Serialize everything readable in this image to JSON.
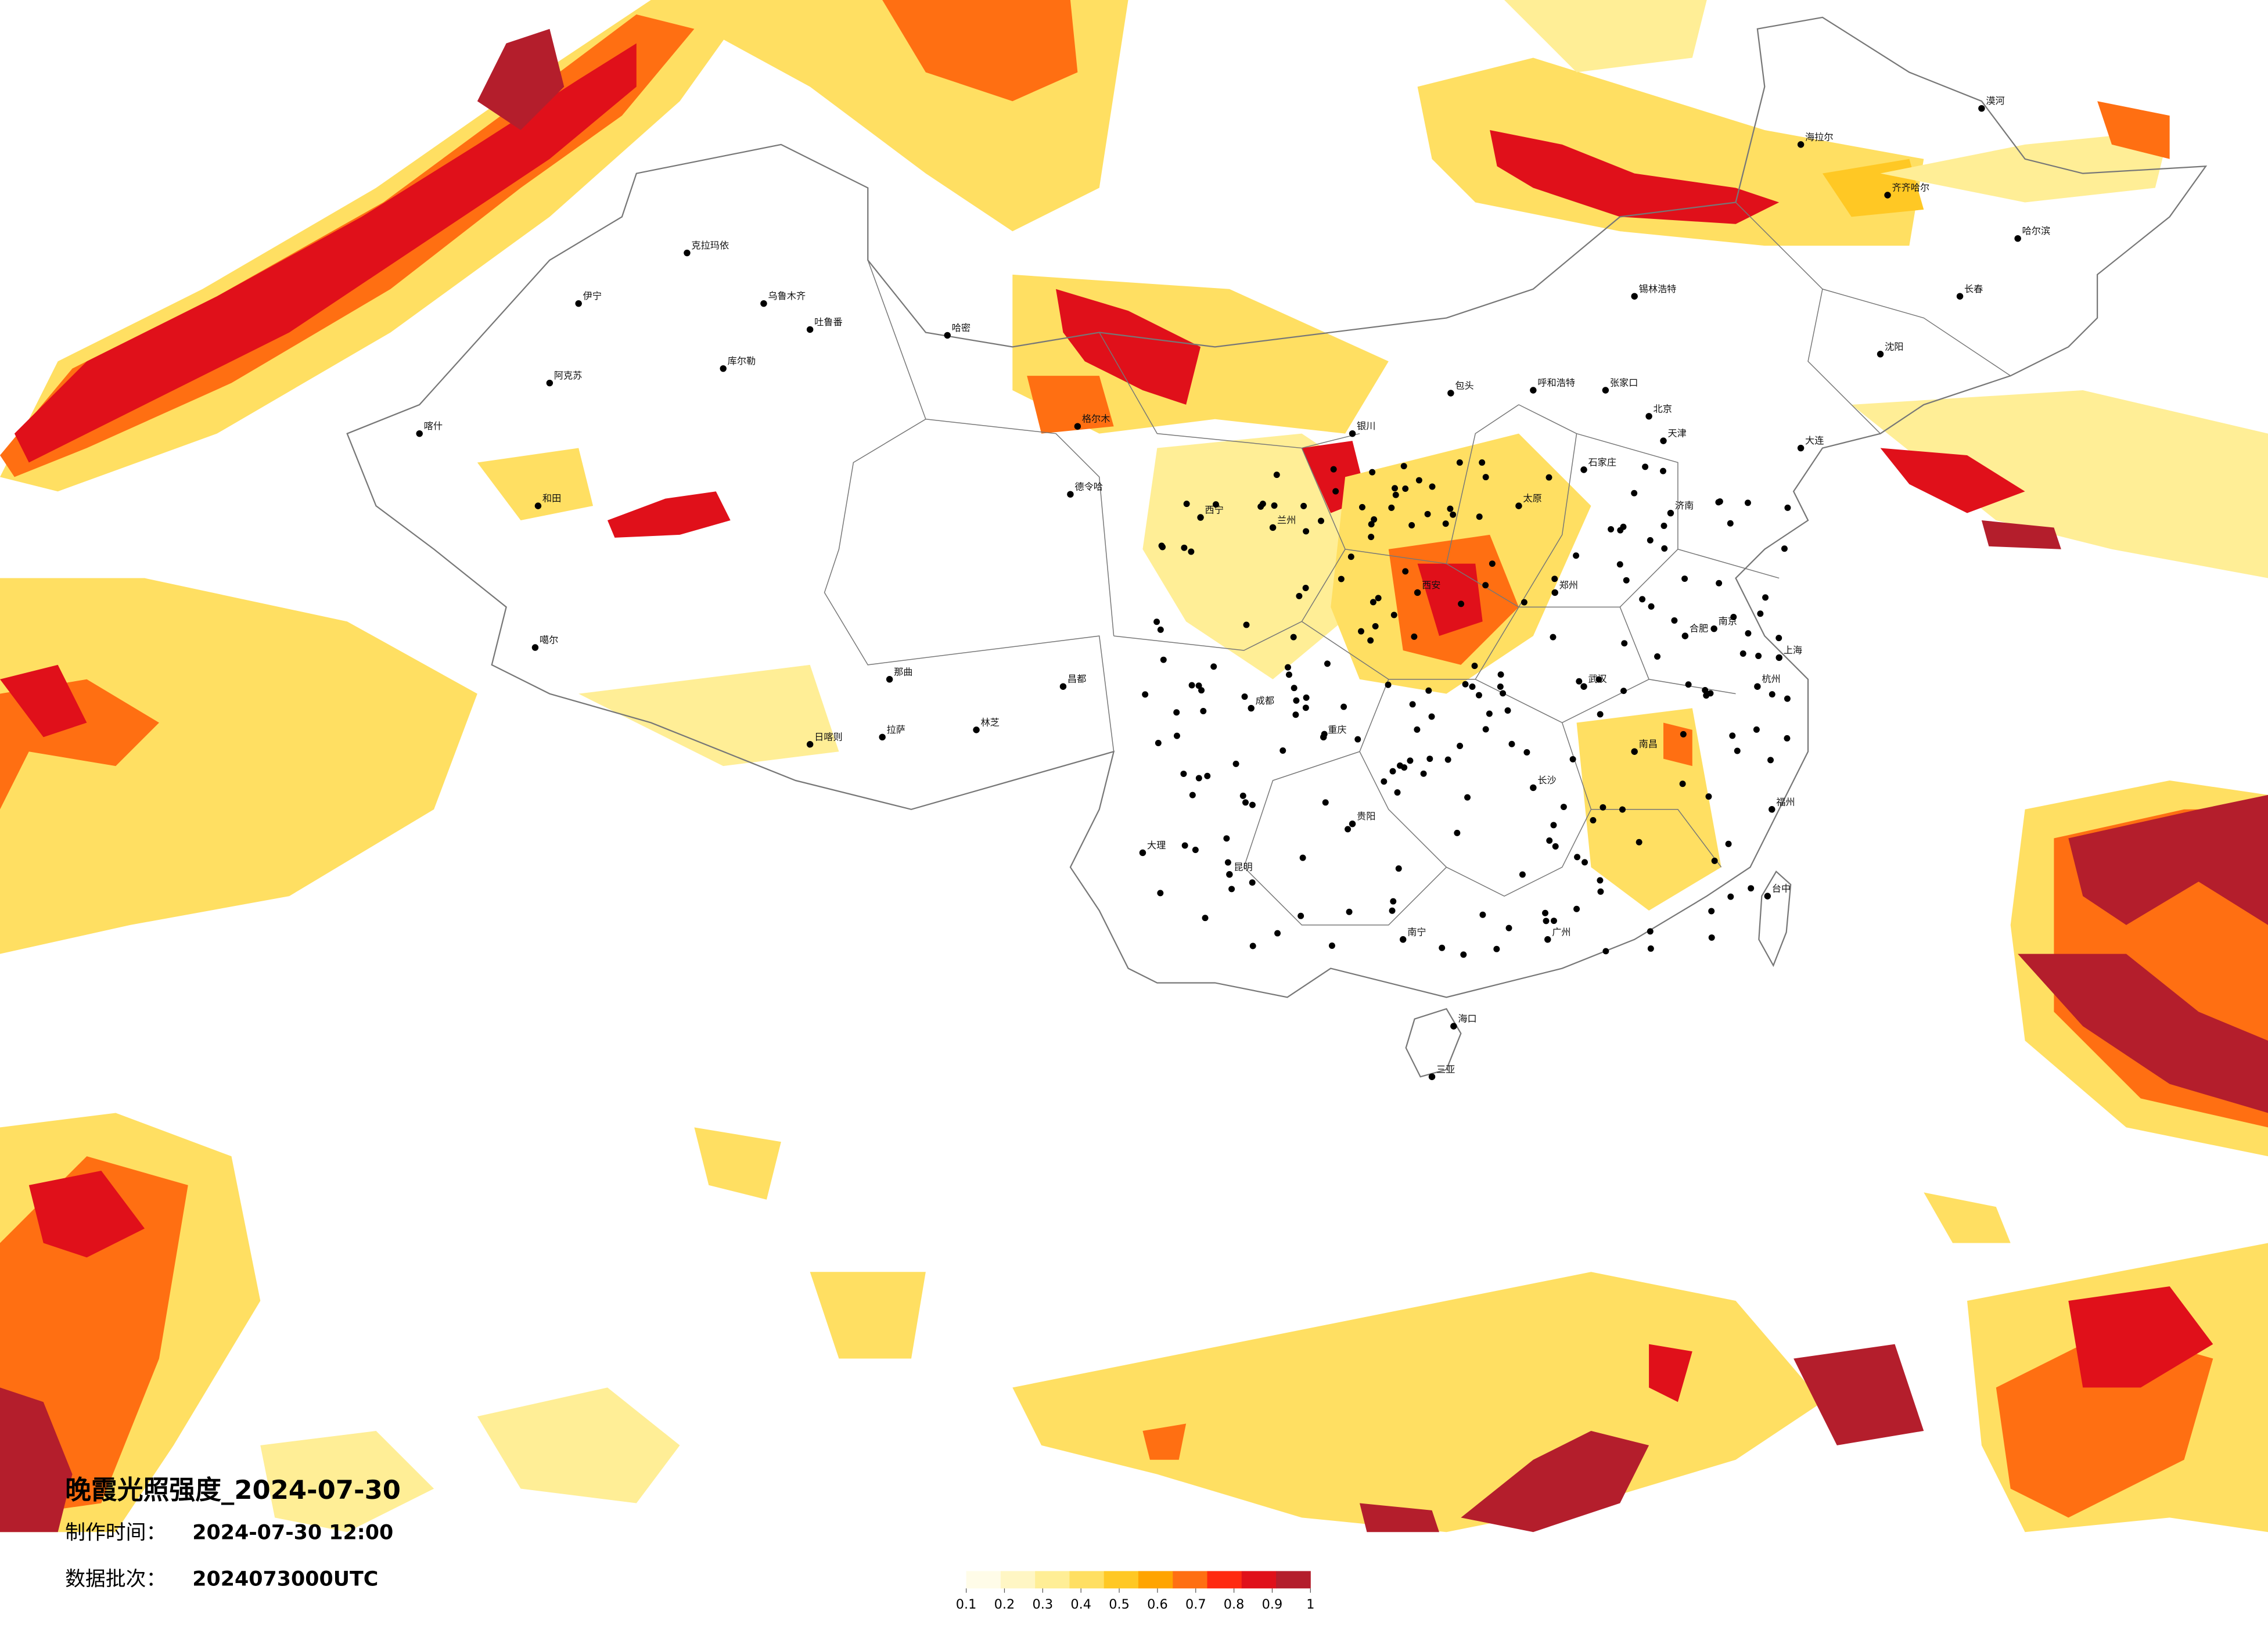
{
  "title": "晚霞光照强度_2024-07-30",
  "made_label": "制作时间：",
  "made_time": "2024-07-30 12:00",
  "batch_label": "数据批次：",
  "batch": "2024073000UTC",
  "legend": {
    "colors": [
      "#fffce8",
      "#fff6c4",
      "#ffee96",
      "#ffdf62",
      "#ffc824",
      "#ffa400",
      "#ff6f12",
      "#ff2a10",
      "#e0101a",
      "#b41e2c"
    ],
    "ticks": [
      0.1,
      0.2,
      0.3,
      0.4,
      0.5,
      0.6,
      0.7,
      0.8,
      0.9,
      1
    ]
  },
  "cities": [
    "克拉玛依",
    "乌鲁木齐",
    "吐鲁番",
    "哈密",
    "伊宁",
    "库尔勒",
    "阿克苏",
    "喀什",
    "和田",
    "噶尔",
    "日喀则",
    "拉萨",
    "林芝",
    "那曲",
    "昌都",
    "格尔木",
    "德令哈",
    "西宁",
    "兰州",
    "银川",
    "呼和浩特",
    "包头",
    "北京",
    "天津",
    "石家庄",
    "太原",
    "济南",
    "郑州",
    "西安",
    "成都",
    "重庆",
    "贵阳",
    "昆明",
    "南宁",
    "广州",
    "长沙",
    "武汉",
    "南昌",
    "合肥",
    "南京",
    "上海",
    "杭州",
    "福州",
    "台中",
    "海口",
    "哈尔滨",
    "长春",
    "沈阳",
    "大连",
    "齐齐哈尔",
    "海拉尔",
    "漠河",
    "锡林浩特",
    "张家口",
    "大理",
    "三亚"
  ]
}
